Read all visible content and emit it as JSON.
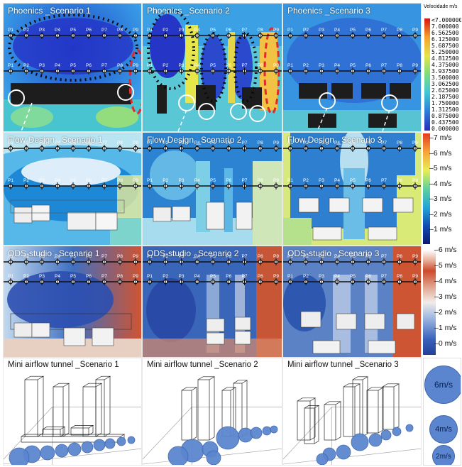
{
  "rows": [
    {
      "id": "phoenics",
      "panels": [
        {
          "title": "Phoenics _Scenario 1"
        },
        {
          "title": "Phoenics _Scenario 2"
        },
        {
          "title": "Phoenics _Scenario 3"
        }
      ],
      "legend": {
        "title": "Velocidade m/s",
        "labels": [
          "<7.000000",
          "7.000000",
          "6.562500",
          "6.125000",
          "5.687500",
          "5.250000",
          "4.812500",
          "4.375000",
          "3.937500",
          "3.500000",
          "3.062500",
          "2.625000",
          "2.187500",
          "1.750000",
          "1.312500",
          "0.875000",
          "0.437500",
          "0.000000"
        ]
      }
    },
    {
      "id": "flowdesign",
      "panels": [
        {
          "title": "Flow Design _Scenario 1"
        },
        {
          "title": "Flow Design _Scenario 2"
        },
        {
          "title": "Flow Design _Scenario 3"
        }
      ],
      "legend": {
        "labels": [
          "7 m/s",
          "6 m/s",
          "5 m/s",
          "4 m/s",
          "3 m/s",
          "2 m/s",
          "1 m/s"
        ]
      }
    },
    {
      "id": "odsstudio",
      "panels": [
        {
          "title": "ODS-studio _Scenario 1"
        },
        {
          "title": "ODS-studio _Scenario 2"
        },
        {
          "title": "ODS-studio _Scenario 3"
        }
      ],
      "legend": {
        "labels": [
          "6 m/s",
          "5 m/s",
          "4 m/s",
          "3 m/s",
          "2 m/s",
          "1 m/s",
          "0 m/s"
        ]
      }
    },
    {
      "id": "tunnel",
      "panels": [
        {
          "title": "Mini airflow tunnel _Scenario 1"
        },
        {
          "title": "Mini airflow tunnel _Scenario 2"
        },
        {
          "title": "Mini airflow tunnel _Scenario 3"
        }
      ],
      "legend": {
        "labels": [
          "6m/s",
          "4m/s",
          "2m/s"
        ]
      }
    }
  ],
  "points": [
    "P1",
    "P2",
    "P3",
    "P4",
    "P5",
    "P6",
    "P7",
    "P8",
    "P9"
  ],
  "colors": {
    "phoenics_bg": "#2f7fd6",
    "flow_bg": "#2c7fd0",
    "ods_bg": "#2e5fb6",
    "ods_hot": "#d04a2d",
    "bubble": "#5b86cf"
  }
}
